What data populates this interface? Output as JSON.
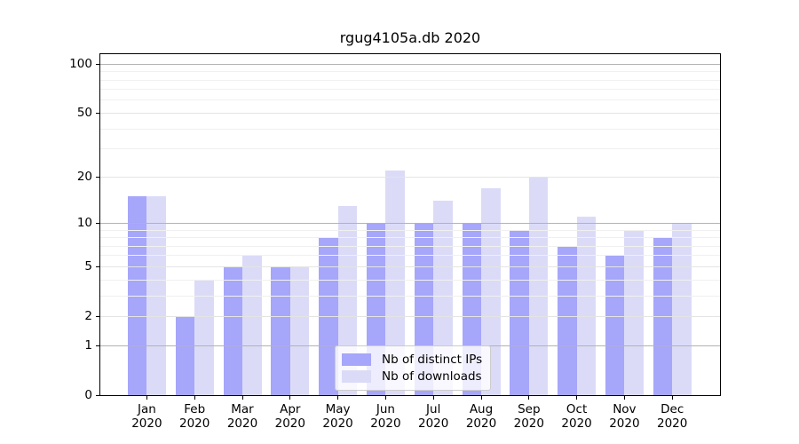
{
  "chart_data": {
    "type": "bar",
    "title": "rgug4105a.db 2020",
    "categories": [
      "Jan",
      "Feb",
      "Mar",
      "Apr",
      "May",
      "Jun",
      "Jul",
      "Aug",
      "Sep",
      "Oct",
      "Nov",
      "Dec"
    ],
    "category_year": "2020",
    "series": [
      {
        "name": "Nb of distinct IPs",
        "color": "#a6a6fa",
        "values": [
          15,
          2,
          5,
          5,
          8,
          10,
          10,
          10,
          9,
          7,
          6,
          8
        ]
      },
      {
        "name": "Nb of downloads",
        "color": "#dbdbf8",
        "values": [
          15,
          4,
          6,
          5,
          13,
          22,
          14,
          17,
          20,
          11,
          9,
          10
        ]
      }
    ],
    "xlabel": "",
    "ylabel": "",
    "yscale": "log10(1+y)",
    "yticks": [
      0,
      1,
      2,
      5,
      10,
      20,
      50,
      100
    ],
    "yticks_minor": [
      3,
      4,
      6,
      7,
      8,
      9,
      30,
      40,
      60,
      70,
      80,
      90
    ],
    "ylim": [
      0,
      114
    ],
    "grid": "horizontal",
    "legend_position": "inside-bottom-center"
  },
  "colors": {
    "background": "#ffffff",
    "axis": "#000000",
    "text": "#000000",
    "grid_decade": "#b3b3b3",
    "grid_labeled": "#e4e4e4",
    "grid_minor": "#f0f0f0",
    "legend_border": "#cccccc",
    "legend_background": "rgba(255,255,255,0.8)"
  }
}
